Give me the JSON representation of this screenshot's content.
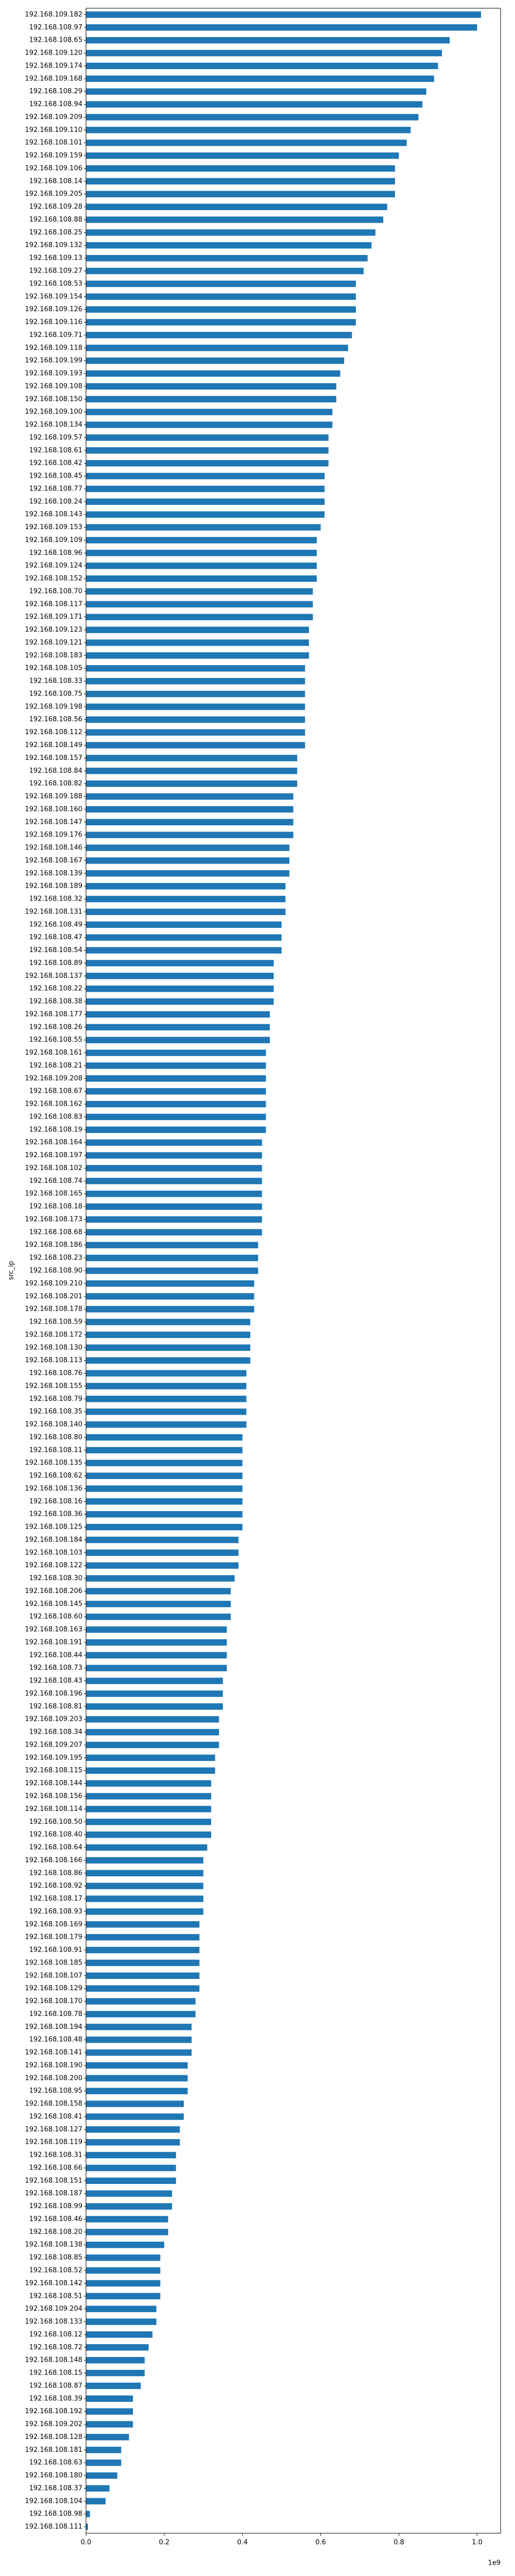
{
  "chart_data": {
    "type": "barh",
    "ylabel": "src_ip",
    "x_offset_label": "1e9",
    "color": "#1f77b4",
    "grid": false,
    "xlim": [
      0,
      1.06
    ],
    "xticks": [
      {
        "value": 0,
        "label": "0.0"
      },
      0.2,
      0.4,
      0.6,
      0.8,
      {
        "value": 1,
        "label": "1.0"
      }
    ],
    "categories": [
      "192.168.109.182",
      "192.168.108.97",
      "192.168.108.65",
      "192.168.109.120",
      "192.168.109.174",
      "192.168.109.168",
      "192.168.108.29",
      "192.168.108.94",
      "192.168.109.209",
      "192.168.109.110",
      "192.168.108.101",
      "192.168.109.159",
      "192.168.109.106",
      "192.168.108.14",
      "192.168.109.205",
      "192.168.109.28",
      "192.168.108.88",
      "192.168.108.25",
      "192.168.109.132",
      "192.168.109.13",
      "192.168.109.27",
      "192.168.108.53",
      "192.168.109.154",
      "192.168.109.126",
      "192.168.109.116",
      "192.168.109.71",
      "192.168.109.118",
      "192.168.109.199",
      "192.168.109.193",
      "192.168.109.108",
      "192.168.108.150",
      "192.168.109.100",
      "192.168.108.134",
      "192.168.109.57",
      "192.168.108.61",
      "192.168.108.42",
      "192.168.108.45",
      "192.168.108.77",
      "192.168.108.24",
      "192.168.108.143",
      "192.168.109.153",
      "192.168.109.109",
      "192.168.108.96",
      "192.168.109.124",
      "192.168.108.152",
      "192.168.108.70",
      "192.168.108.117",
      "192.168.109.171",
      "192.168.109.123",
      "192.168.109.121",
      "192.168.108.183",
      "192.168.108.105",
      "192.168.108.33",
      "192.168.108.75",
      "192.168.109.198",
      "192.168.108.56",
      "192.168.108.112",
      "192.168.108.149",
      "192.168.108.157",
      "192.168.108.84",
      "192.168.108.82",
      "192.168.109.188",
      "192.168.108.160",
      "192.168.108.147",
      "192.168.109.176",
      "192.168.108.146",
      "192.168.108.167",
      "192.168.108.139",
      "192.168.108.189",
      "192.168.108.32",
      "192.168.108.131",
      "192.168.108.49",
      "192.168.108.47",
      "192.168.108.54",
      "192.168.108.89",
      "192.168.108.137",
      "192.168.108.22",
      "192.168.108.38",
      "192.168.108.177",
      "192.168.108.26",
      "192.168.108.55",
      "192.168.108.161",
      "192.168.108.21",
      "192.168.109.208",
      "192.168.108.67",
      "192.168.108.162",
      "192.168.108.83",
      "192.168.108.19",
      "192.168.108.164",
      "192.168.108.197",
      "192.168.108.102",
      "192.168.108.74",
      "192.168.108.165",
      "192.168.108.18",
      "192.168.108.173",
      "192.168.108.68",
      "192.168.108.186",
      "192.168.108.23",
      "192.168.108.90",
      "192.168.109.210",
      "192.168.108.201",
      "192.168.108.178",
      "192.168.108.59",
      "192.168.108.172",
      "192.168.108.130",
      "192.168.108.113",
      "192.168.108.76",
      "192.168.108.155",
      "192.168.108.79",
      "192.168.108.35",
      "192.168.108.140",
      "192.168.108.80",
      "192.168.108.11",
      "192.168.108.135",
      "192.168.108.62",
      "192.168.108.136",
      "192.168.108.16",
      "192.168.108.36",
      "192.168.108.125",
      "192.168.108.184",
      "192.168.108.103",
      "192.168.108.122",
      "192.168.108.30",
      "192.168.108.206",
      "192.168.108.145",
      "192.168.108.60",
      "192.168.108.163",
      "192.168.108.191",
      "192.168.108.44",
      "192.168.108.73",
      "192.168.108.43",
      "192.168.108.196",
      "192.168.108.81",
      "192.168.109.203",
      "192.168.108.34",
      "192.168.109.207",
      "192.168.109.195",
      "192.168.108.115",
      "192.168.108.144",
      "192.168.108.156",
      "192.168.108.114",
      "192.168.108.50",
      "192.168.108.40",
      "192.168.108.64",
      "192.168.108.166",
      "192.168.108.86",
      "192.168.108.92",
      "192.168.108.17",
      "192.168.108.93",
      "192.168.108.169",
      "192.168.108.179",
      "192.168.108.91",
      "192.168.108.185",
      "192.168.108.107",
      "192.168.108.129",
      "192.168.108.170",
      "192.168.108.78",
      "192.168.108.194",
      "192.168.108.48",
      "192.168.108.141",
      "192.168.108.190",
      "192.168.108.200",
      "192.168.108.95",
      "192.168.108.158",
      "192.168.108.41",
      "192.168.108.127",
      "192.168.108.119",
      "192.168.108.31",
      "192.168.108.66",
      "192.168.108.151",
      "192.168.108.187",
      "192.168.108.99",
      "192.168.108.46",
      "192.168.108.20",
      "192.168.108.138",
      "192.168.108.85",
      "192.168.108.52",
      "192.168.108.142",
      "192.168.108.51",
      "192.168.109.204",
      "192.168.108.133",
      "192.168.108.12",
      "192.168.108.72",
      "192.168.108.148",
      "192.168.108.15",
      "192.168.108.87",
      "192.168.108.39",
      "192.168.108.192",
      "192.168.109.202",
      "192.168.108.128",
      "192.168.108.181",
      "192.168.108.63",
      "192.168.108.180",
      "192.168.108.37",
      "192.168.108.104",
      "192.168.108.98",
      "192.168.108.111"
    ],
    "values": [
      1.01,
      1.0,
      0.93,
      0.91,
      0.9,
      0.89,
      0.87,
      0.86,
      0.85,
      0.83,
      0.82,
      0.8,
      0.79,
      0.79,
      0.79,
      0.77,
      0.76,
      0.74,
      0.73,
      0.72,
      0.71,
      0.69,
      0.69,
      0.69,
      0.69,
      0.68,
      0.67,
      0.66,
      0.65,
      0.64,
      0.64,
      0.63,
      0.63,
      0.62,
      0.62,
      0.62,
      0.61,
      0.61,
      0.61,
      0.61,
      0.6,
      0.59,
      0.59,
      0.59,
      0.59,
      0.58,
      0.58,
      0.58,
      0.57,
      0.57,
      0.57,
      0.56,
      0.56,
      0.56,
      0.56,
      0.56,
      0.56,
      0.56,
      0.54,
      0.54,
      0.54,
      0.53,
      0.53,
      0.53,
      0.53,
      0.52,
      0.52,
      0.52,
      0.51,
      0.51,
      0.51,
      0.5,
      0.5,
      0.5,
      0.48,
      0.48,
      0.48,
      0.48,
      0.47,
      0.47,
      0.47,
      0.46,
      0.46,
      0.46,
      0.46,
      0.46,
      0.46,
      0.46,
      0.45,
      0.45,
      0.45,
      0.45,
      0.45,
      0.45,
      0.45,
      0.45,
      0.44,
      0.44,
      0.44,
      0.43,
      0.43,
      0.43,
      0.42,
      0.42,
      0.42,
      0.42,
      0.41,
      0.41,
      0.41,
      0.41,
      0.41,
      0.4,
      0.4,
      0.4,
      0.4,
      0.4,
      0.4,
      0.4,
      0.4,
      0.39,
      0.39,
      0.39,
      0.38,
      0.37,
      0.37,
      0.37,
      0.36,
      0.36,
      0.36,
      0.36,
      0.35,
      0.35,
      0.35,
      0.34,
      0.34,
      0.34,
      0.33,
      0.33,
      0.32,
      0.32,
      0.32,
      0.32,
      0.32,
      0.31,
      0.3,
      0.3,
      0.3,
      0.3,
      0.3,
      0.29,
      0.29,
      0.29,
      0.29,
      0.29,
      0.29,
      0.28,
      0.28,
      0.27,
      0.27,
      0.27,
      0.26,
      0.26,
      0.26,
      0.25,
      0.25,
      0.24,
      0.24,
      0.23,
      0.23,
      0.23,
      0.22,
      0.22,
      0.21,
      0.21,
      0.2,
      0.19,
      0.19,
      0.19,
      0.19,
      0.18,
      0.18,
      0.17,
      0.16,
      0.15,
      0.15,
      0.14,
      0.12,
      0.12,
      0.12,
      0.11,
      0.09,
      0.09,
      0.08,
      0.06,
      0.05,
      0.01,
      0.005
    ]
  }
}
